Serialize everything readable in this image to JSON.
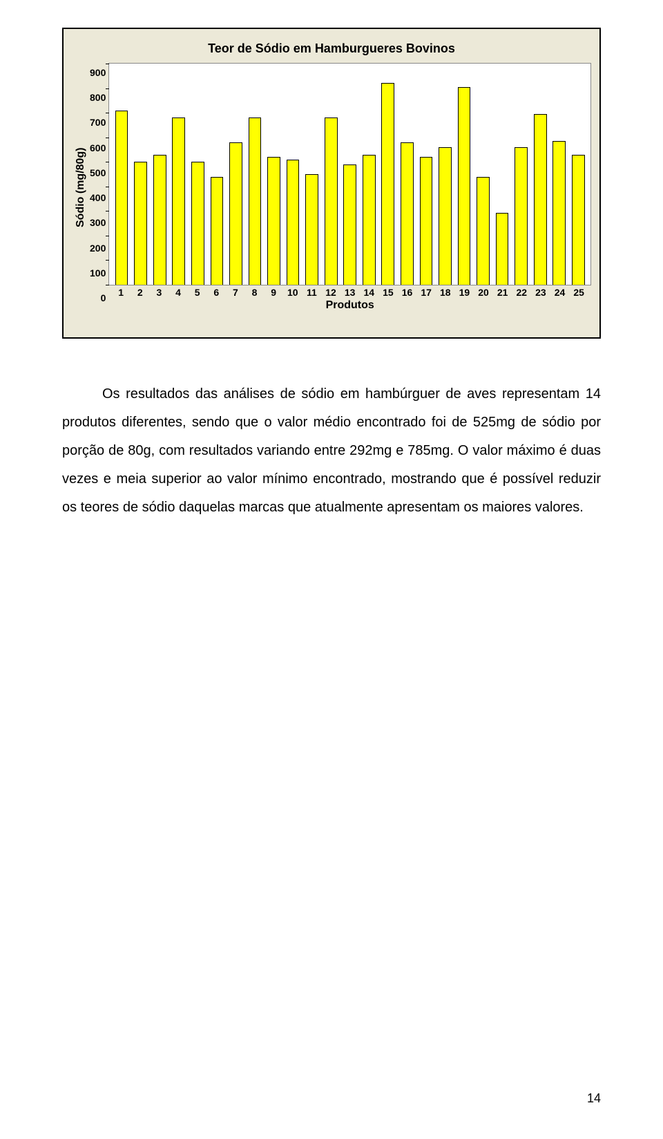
{
  "chart": {
    "type": "bar",
    "title": "Teor de Sódio em Hamburgueres Bovinos",
    "ylabel": "Sódio (mg/80g)",
    "xlabel": "Produtos",
    "ylim": [
      0,
      900
    ],
    "ytick_step": 100,
    "yticks": [
      "900",
      "800",
      "700",
      "600",
      "500",
      "400",
      "300",
      "200",
      "100",
      "0"
    ],
    "categories": [
      "1",
      "2",
      "3",
      "4",
      "5",
      "6",
      "7",
      "8",
      "9",
      "10",
      "11",
      "12",
      "13",
      "14",
      "15",
      "16",
      "17",
      "18",
      "19",
      "20",
      "21",
      "22",
      "23",
      "24",
      "25"
    ],
    "values": [
      710,
      500,
      530,
      680,
      500,
      440,
      580,
      680,
      520,
      510,
      450,
      680,
      490,
      530,
      820,
      580,
      520,
      560,
      805,
      440,
      292,
      560,
      695,
      585,
      530
    ],
    "bar_color": "#ffff00",
    "bar_border": "#000000",
    "plot_background": "#ffffff",
    "frame_background": "#ece9d8",
    "frame_border": "#000000",
    "title_fontsize": 18,
    "label_fontsize": 16,
    "tick_fontsize": 14,
    "bar_width": 0.68
  },
  "paragraph": "Os resultados das análises de sódio em hambúrguer de aves representam 14 produtos diferentes, sendo que o valor médio encontrado foi de 525mg de sódio por porção de 80g, com resultados variando entre 292mg e 785mg. O valor máximo é duas vezes e meia superior ao valor mínimo encontrado, mostrando que é possível reduzir os teores de sódio daquelas marcas que atualmente apresentam os maiores valores.",
  "page_number": "14"
}
